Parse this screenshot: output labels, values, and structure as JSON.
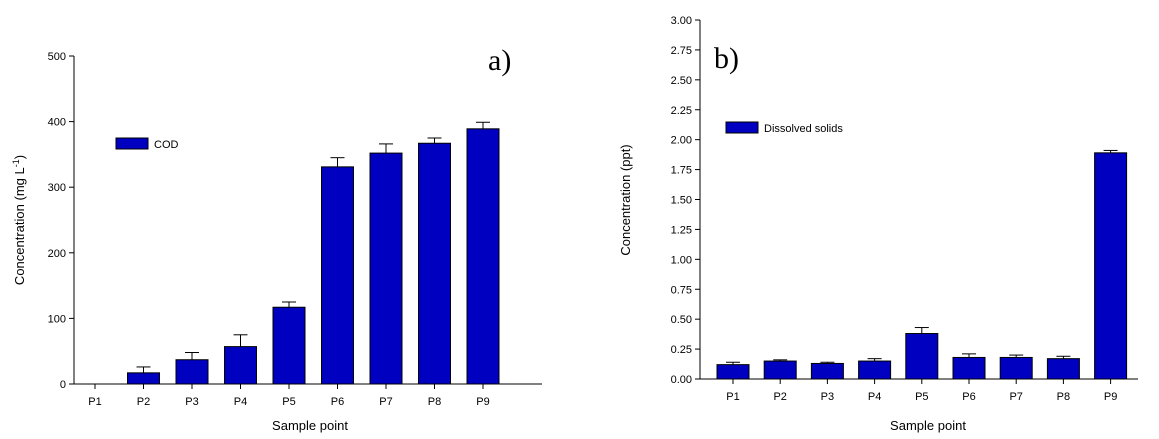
{
  "chart_data": [
    {
      "type": "bar",
      "panel_label": "a)",
      "categories": [
        "P1",
        "P2",
        "P3",
        "P4",
        "P5",
        "P6",
        "P7",
        "P8",
        "P9"
      ],
      "series": [
        {
          "name": "COD",
          "values": [
            0,
            17,
            37,
            57,
            117,
            331,
            352,
            367,
            389
          ],
          "errors": [
            0,
            9,
            11,
            18,
            8,
            14,
            14,
            8,
            10
          ]
        }
      ],
      "xlabel": "Sample point",
      "ylabel": "Concentration (mg L",
      "ylabel_sup": "-1",
      "ylabel_close": ")",
      "ylim": [
        0,
        500
      ],
      "yticks": [
        "0",
        "100",
        "200",
        "300",
        "400",
        "500"
      ],
      "grid": false,
      "legend_position": "top-left",
      "bar_color": "#0000c0"
    },
    {
      "type": "bar",
      "panel_label": "b)",
      "categories": [
        "P1",
        "P2",
        "P3",
        "P4",
        "P5",
        "P6",
        "P7",
        "P8",
        "P9"
      ],
      "series": [
        {
          "name": "Dissolved solids",
          "values": [
            0.12,
            0.15,
            0.13,
            0.15,
            0.38,
            0.18,
            0.18,
            0.17,
            1.89
          ],
          "errors": [
            0.02,
            0.01,
            0.01,
            0.02,
            0.05,
            0.03,
            0.02,
            0.02,
            0.02
          ]
        }
      ],
      "xlabel": "Sample point",
      "ylabel": "Concentration (ppt)",
      "ylim": [
        0,
        3
      ],
      "yticks": [
        "0.00",
        "0.25",
        "0.50",
        "0.75",
        "1.00",
        "1.25",
        "1.50",
        "1.75",
        "2.00",
        "2.25",
        "2.50",
        "2.75",
        "3.00"
      ],
      "grid": false,
      "legend_position": "top-left",
      "bar_color": "#0000c0"
    }
  ]
}
